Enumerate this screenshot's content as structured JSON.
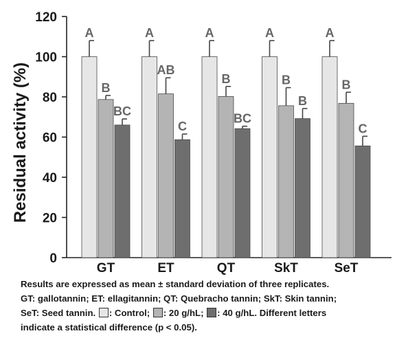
{
  "chart_data": {
    "type": "bar",
    "title": "",
    "xlabel": "",
    "ylabel": "Residual activity (%)",
    "ylim": [
      0,
      120
    ],
    "yticks": [
      0,
      20,
      40,
      60,
      80,
      100,
      120
    ],
    "categories": [
      "GT",
      "ET",
      "QT",
      "SkT",
      "SeT"
    ],
    "series": [
      {
        "name": "Control",
        "color": "#e6e6e6",
        "values": [
          100,
          100,
          100,
          100,
          100
        ],
        "errors": [
          8,
          8,
          8,
          8,
          8
        ],
        "letters": [
          "A",
          "A",
          "A",
          "A",
          "A"
        ]
      },
      {
        "name": "20 g/hL",
        "color": "#b4b4b4",
        "values": [
          78.7,
          81.5,
          80.2,
          75.6,
          76.8
        ],
        "errors": [
          2,
          8,
          5,
          9,
          5.5
        ],
        "letters": [
          "B",
          "AB",
          "B",
          "B",
          "B"
        ]
      },
      {
        "name": "40 g/hL",
        "color": "#6e6e6e",
        "values": [
          66,
          58.7,
          64.2,
          69.2,
          55.6
        ],
        "errors": [
          3,
          2.8,
          1.2,
          5,
          4.8
        ],
        "letters": [
          "BC",
          "C",
          "BC",
          "B",
          "C"
        ]
      }
    ],
    "grid": false,
    "legend": "none"
  },
  "caption": {
    "line1": "Results are expressed as mean ± standard deviation of three replicates.",
    "line2": "GT: gallotannin; ET: ellagitannin; QT: Quebracho tannin; SkT: Skin tannin;",
    "line3_a": "SeT: Seed tannin.",
    "line3_b": ": Control;",
    "line3_c": ": 20 g/hL;",
    "line3_d": ": 40 g/hL. Different letters",
    "line4": "indicate a statistical difference (p < 0.05)."
  }
}
